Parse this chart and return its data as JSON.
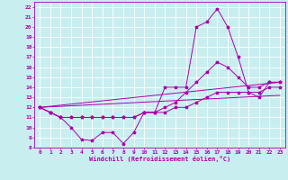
{
  "xlabel": "Windchill (Refroidissement éolien,°C)",
  "bg_color": "#c8eef0",
  "line_color": "#aa00aa",
  "grid_color": "#ffffff",
  "xlim": [
    -0.5,
    23.5
  ],
  "ylim": [
    8,
    22.5
  ],
  "xticks": [
    0,
    1,
    2,
    3,
    4,
    5,
    6,
    7,
    8,
    9,
    10,
    11,
    12,
    13,
    14,
    15,
    16,
    17,
    18,
    19,
    20,
    21,
    22,
    23
  ],
  "yticks": [
    8,
    9,
    10,
    11,
    12,
    13,
    14,
    15,
    16,
    17,
    18,
    19,
    20,
    21,
    22
  ],
  "line1_x": [
    0,
    1,
    2,
    3,
    4,
    5,
    6,
    7,
    8,
    9,
    10,
    11,
    12,
    13,
    14,
    15,
    16,
    17,
    18,
    19,
    20,
    21,
    22,
    23
  ],
  "line1_y": [
    12,
    11.5,
    11,
    10,
    8.8,
    8.7,
    9.5,
    9.5,
    8.4,
    9.5,
    11.5,
    11.5,
    14,
    14,
    14,
    20,
    20.5,
    21.8,
    20,
    17,
    13.5,
    13,
    14.5,
    14.5
  ],
  "line2_x": [
    0,
    1,
    2,
    3,
    4,
    5,
    6,
    7,
    8,
    9,
    10,
    11,
    12,
    13,
    14,
    15,
    16,
    17,
    18,
    19,
    20,
    21,
    22,
    23
  ],
  "line2_y": [
    12,
    11.5,
    11,
    11,
    11,
    11,
    11,
    11,
    11,
    11,
    11.5,
    11.5,
    12,
    12.5,
    13.5,
    14.5,
    15.5,
    16.5,
    16,
    15,
    14,
    14,
    14.5,
    14.5
  ],
  "line3_x": [
    0,
    1,
    2,
    3,
    4,
    5,
    6,
    7,
    8,
    9,
    10,
    11,
    12,
    13,
    14,
    15,
    16,
    17,
    18,
    19,
    20,
    21,
    22,
    23
  ],
  "line3_y": [
    12,
    11.5,
    11,
    11,
    11,
    11,
    11,
    11,
    11,
    11,
    11.5,
    11.5,
    11.5,
    12,
    12,
    12.5,
    13,
    13.5,
    13.5,
    13.5,
    13.5,
    13.5,
    14,
    14
  ],
  "trend1_x": [
    0,
    23
  ],
  "trend1_y": [
    12,
    14.5
  ],
  "trend2_x": [
    0,
    23
  ],
  "trend2_y": [
    12,
    13.2
  ]
}
